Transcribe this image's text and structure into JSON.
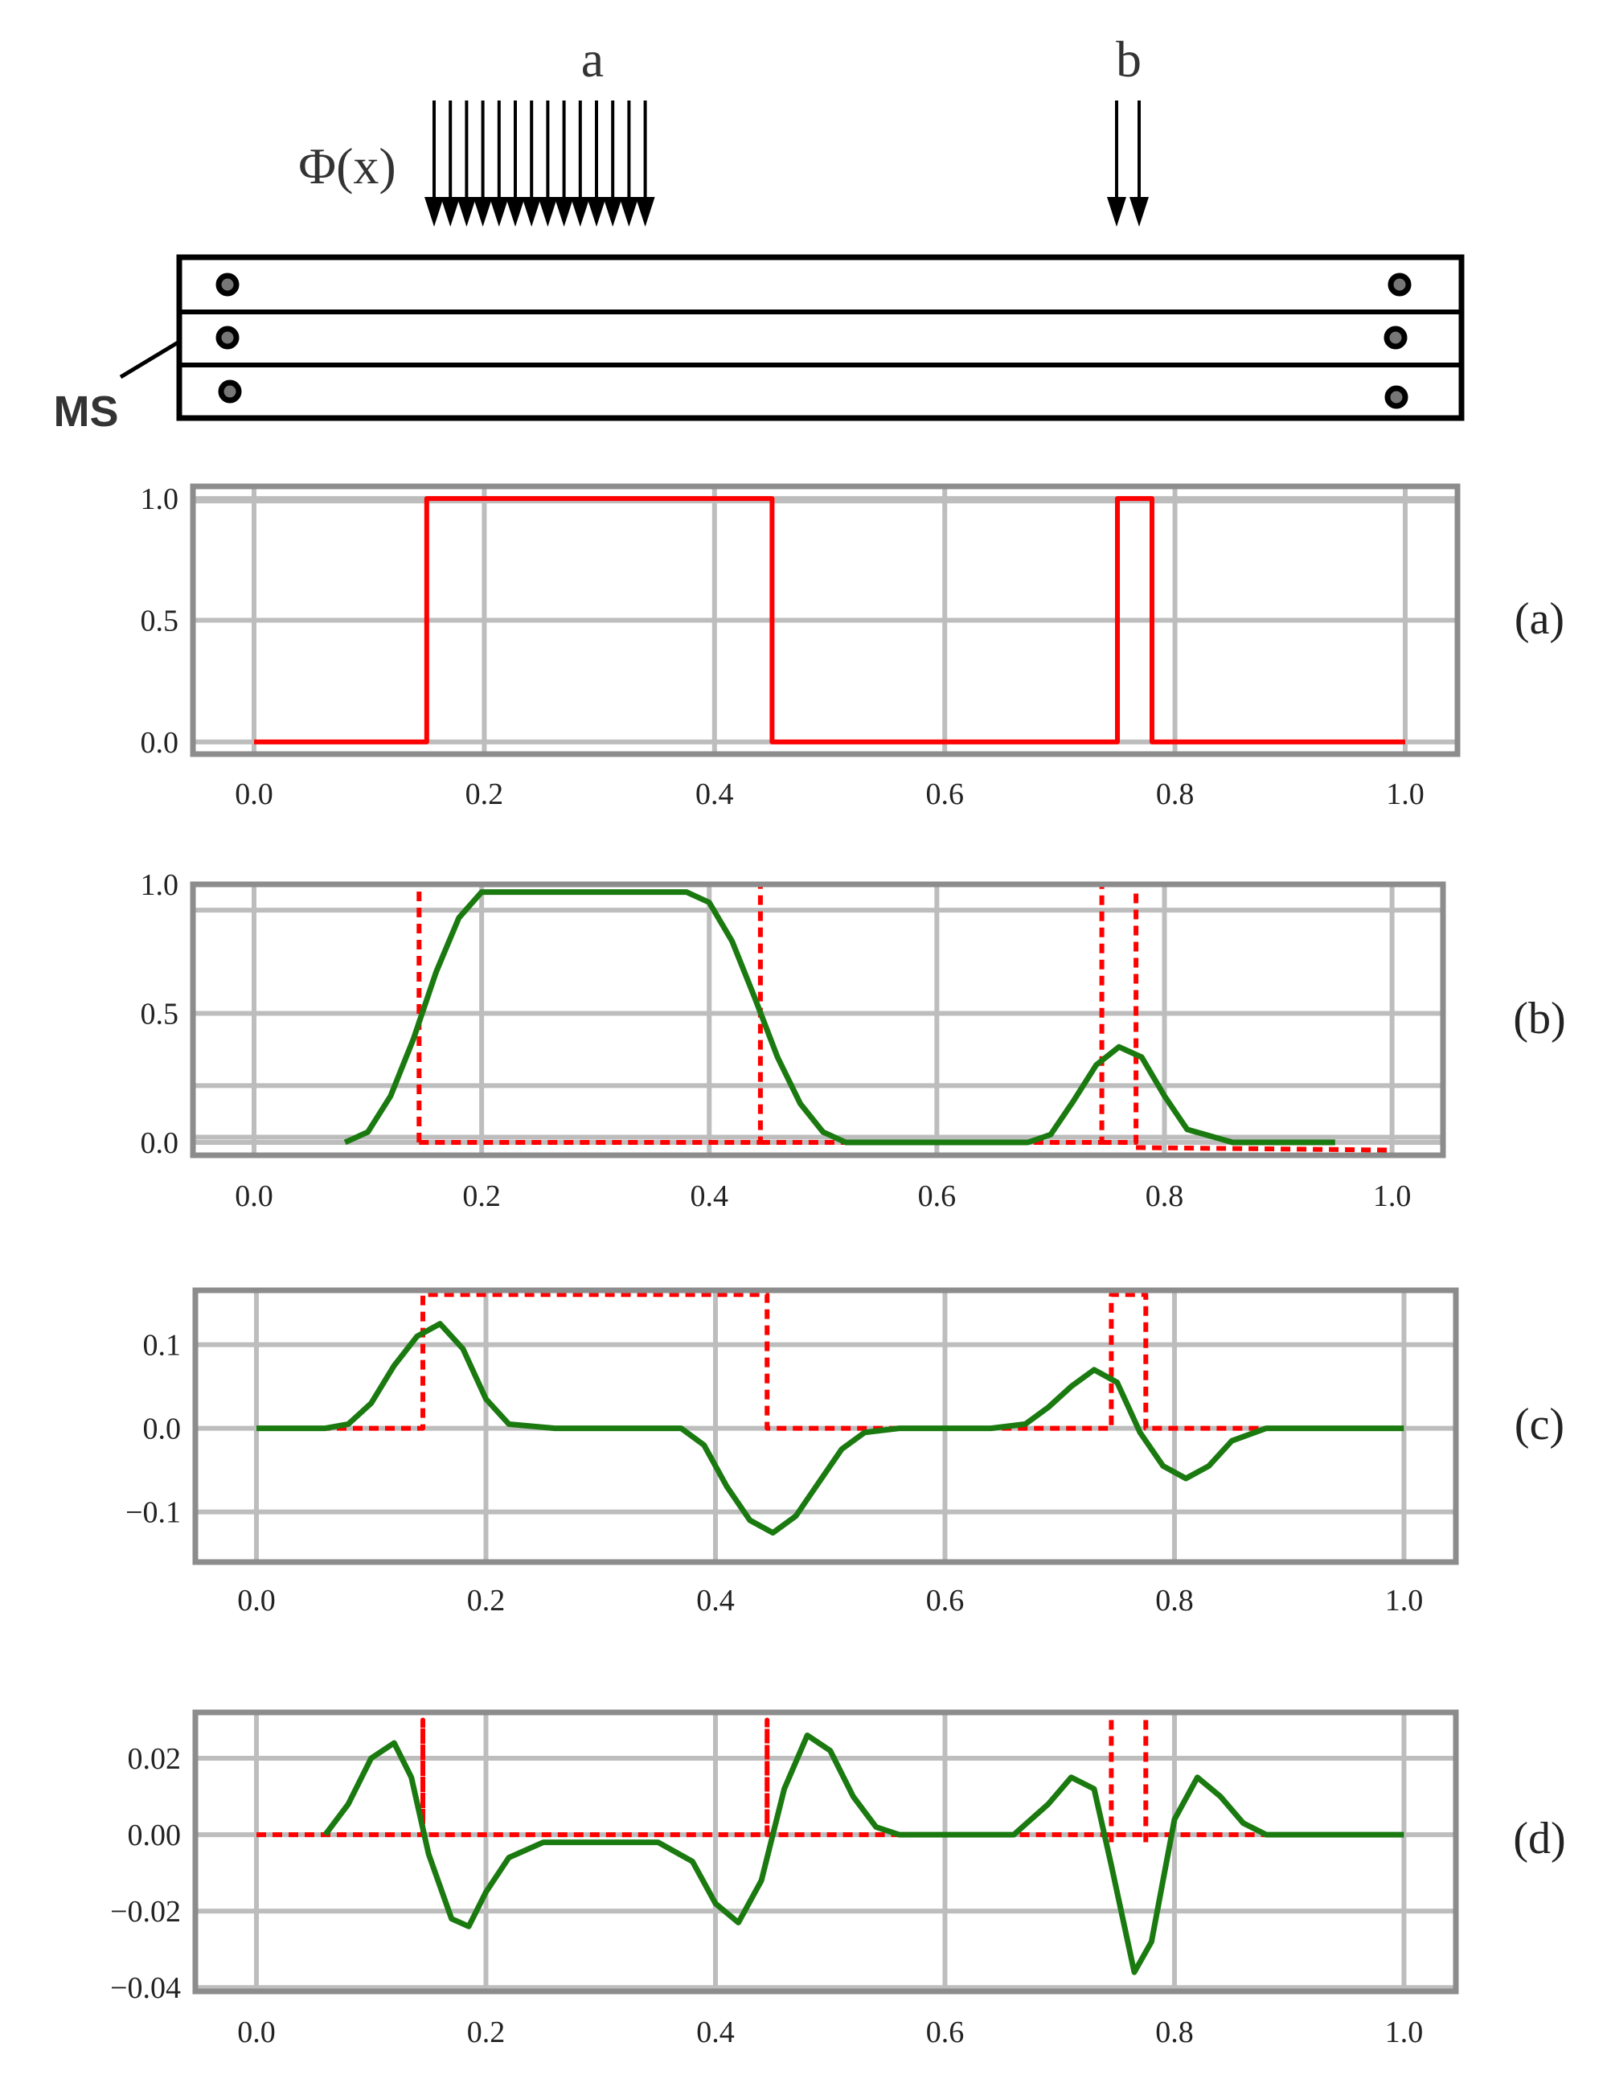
{
  "diagram": {
    "load_a_label": "a",
    "load_b_label": "b",
    "load_function_label": "Φ(x)",
    "strip_label": "MS"
  },
  "colors": {
    "frame": "#8c8c8c",
    "grid": "#bdbdbd",
    "exact": "#ff0000",
    "approx": "#1a7a10",
    "ink": "#000000"
  },
  "chart_data": [
    {
      "type": "line",
      "panel_label": "(a)",
      "xlim": [
        0,
        1
      ],
      "ylim": [
        -0.05,
        1.05
      ],
      "x_ticks": [
        "0.0",
        "0.2",
        "0.4",
        "0.6",
        "0.8",
        "1.0"
      ],
      "y_ticks": [
        {
          "value": 0.0,
          "label": "0.0"
        },
        {
          "value": 0.5,
          "label": "0.5"
        },
        {
          "value": 1.0,
          "label": "1.0"
        }
      ],
      "extra_grid_y": [
        0.99
      ],
      "series": [
        {
          "role": "exact",
          "style": "solid",
          "x": [
            0.0,
            0.15,
            0.15,
            0.45,
            0.45,
            0.75,
            0.75,
            0.78,
            0.78,
            1.0
          ],
          "y": [
            0,
            0,
            1,
            1,
            0,
            0,
            1,
            1,
            0,
            0
          ]
        }
      ]
    },
    {
      "type": "line",
      "panel_label": "(b)",
      "xlim": [
        0,
        1
      ],
      "ylim": [
        -0.05,
        1.0
      ],
      "x_ticks": [
        "0.0",
        "0.2",
        "0.4",
        "0.6",
        "0.8",
        "1.0"
      ],
      "y_ticks": [
        {
          "value": 0.0,
          "label": "0.0"
        },
        {
          "value": 0.5,
          "label": "0.5"
        },
        {
          "value": 1.0,
          "label": "1.0"
        }
      ],
      "extra_grid_y": [
        0.9,
        0.22,
        0.02
      ],
      "series": [
        {
          "role": "exact",
          "style": "dashed",
          "x": [
            0.145,
            0.145,
            0.145,
            0.145,
            0.445,
            0.445,
            0.445,
            0.445,
            0.745,
            0.745,
            0.745,
            0.745,
            0.775,
            0.775,
            0.775,
            0.775,
            1.0
          ],
          "y": [
            0.0,
            1.0,
            null,
            0.0,
            0.0,
            1.0,
            null,
            0.0,
            0.0,
            1.0,
            null,
            0.0,
            0.0,
            1.0,
            null,
            -0.02,
            -0.03
          ]
        },
        {
          "role": "approx",
          "style": "solid",
          "x": [
            0.08,
            0.1,
            0.12,
            0.14,
            0.16,
            0.18,
            0.2,
            0.22,
            0.26,
            0.3,
            0.34,
            0.38,
            0.4,
            0.42,
            0.44,
            0.46,
            0.48,
            0.5,
            0.52,
            0.56,
            0.6,
            0.64,
            0.68,
            0.7,
            0.72,
            0.74,
            0.76,
            0.78,
            0.8,
            0.82,
            0.86,
            0.9,
            0.95
          ],
          "y": [
            0.0,
            0.04,
            0.18,
            0.4,
            0.66,
            0.87,
            0.97,
            0.97,
            0.97,
            0.97,
            0.97,
            0.97,
            0.93,
            0.78,
            0.56,
            0.33,
            0.15,
            0.04,
            0.0,
            0.0,
            0.0,
            0.0,
            0.0,
            0.03,
            0.16,
            0.3,
            0.37,
            0.33,
            0.18,
            0.05,
            0.0,
            0.0,
            0.0
          ]
        }
      ]
    },
    {
      "type": "line",
      "panel_label": "(c)",
      "xlim": [
        0,
        1
      ],
      "ylim": [
        -0.16,
        0.165
      ],
      "x_ticks": [
        "0.0",
        "0.2",
        "0.4",
        "0.6",
        "0.8",
        "1.0"
      ],
      "y_ticks": [
        {
          "value": 0.1,
          "label": "0.1"
        },
        {
          "value": 0.0,
          "label": "0.0"
        },
        {
          "value": -0.1,
          "label": "−0.1"
        }
      ],
      "extra_grid_y": [],
      "series": [
        {
          "role": "exact",
          "style": "dashed",
          "x": [
            0.0,
            0.145,
            0.145,
            0.445,
            0.445,
            0.745,
            0.745,
            0.775,
            0.775,
            1.0
          ],
          "y": [
            0.0,
            0.0,
            0.16,
            0.16,
            0.0,
            0.0,
            0.16,
            0.16,
            0.0,
            0.0
          ]
        },
        {
          "role": "approx",
          "style": "solid",
          "x": [
            0.0,
            0.06,
            0.08,
            0.1,
            0.12,
            0.14,
            0.16,
            0.18,
            0.2,
            0.22,
            0.26,
            0.3,
            0.34,
            0.37,
            0.39,
            0.41,
            0.43,
            0.45,
            0.47,
            0.49,
            0.51,
            0.53,
            0.56,
            0.6,
            0.64,
            0.67,
            0.69,
            0.71,
            0.73,
            0.75,
            0.77,
            0.79,
            0.81,
            0.83,
            0.85,
            0.88,
            0.92,
            1.0
          ],
          "y": [
            0.0,
            0.0,
            0.005,
            0.03,
            0.075,
            0.11,
            0.125,
            0.095,
            0.035,
            0.005,
            0.0,
            0.0,
            0.0,
            0.0,
            -0.02,
            -0.07,
            -0.11,
            -0.125,
            -0.105,
            -0.065,
            -0.025,
            -0.005,
            0.0,
            0.0,
            0.0,
            0.005,
            0.025,
            0.05,
            0.07,
            0.055,
            -0.005,
            -0.045,
            -0.06,
            -0.045,
            -0.015,
            0.0,
            0.0,
            0.0
          ]
        }
      ]
    },
    {
      "type": "line",
      "panel_label": "(d)",
      "xlim": [
        0,
        1
      ],
      "ylim": [
        -0.041,
        0.032
      ],
      "x_ticks": [
        "0.0",
        "0.2",
        "0.4",
        "0.6",
        "0.8",
        "1.0"
      ],
      "y_ticks": [
        {
          "value": 0.02,
          "label": "0.02"
        },
        {
          "value": 0.0,
          "label": "0.00"
        },
        {
          "value": -0.02,
          "label": "−0.02"
        },
        {
          "value": -0.04,
          "label": "−0.04"
        }
      ],
      "extra_grid_y": [],
      "series": [
        {
          "role": "exact",
          "style": "dashed",
          "x": [
            0.0,
            0.145,
            0.145,
            0.145,
            0.445,
            0.445,
            0.445,
            1.0,
            null,
            0.745,
            0.745,
            null,
            0.775,
            0.775
          ],
          "y": [
            0.0,
            0.0,
            0.03,
            0.0,
            0.0,
            0.03,
            0.0,
            0.0,
            null,
            0.03,
            -0.002,
            null,
            0.03,
            -0.002
          ]
        },
        {
          "role": "approx",
          "style": "solid",
          "x": [
            0.06,
            0.08,
            0.1,
            0.12,
            0.135,
            0.15,
            0.17,
            0.185,
            0.2,
            0.22,
            0.25,
            0.3,
            0.35,
            0.38,
            0.4,
            0.42,
            0.44,
            0.46,
            0.48,
            0.5,
            0.52,
            0.54,
            0.56,
            0.6,
            0.66,
            0.69,
            0.71,
            0.73,
            0.745,
            0.765,
            0.78,
            0.8,
            0.82,
            0.84,
            0.86,
            0.88,
            0.95,
            1.0
          ],
          "y": [
            0.0,
            0.008,
            0.02,
            0.024,
            0.015,
            -0.005,
            -0.022,
            -0.024,
            -0.015,
            -0.006,
            -0.002,
            -0.002,
            -0.002,
            -0.007,
            -0.018,
            -0.023,
            -0.012,
            0.012,
            0.026,
            0.022,
            0.01,
            0.002,
            0.0,
            0.0,
            0.0,
            0.008,
            0.015,
            0.012,
            -0.008,
            -0.036,
            -0.028,
            0.004,
            0.015,
            0.01,
            0.003,
            0.0,
            0.0,
            0.0
          ]
        }
      ]
    }
  ]
}
